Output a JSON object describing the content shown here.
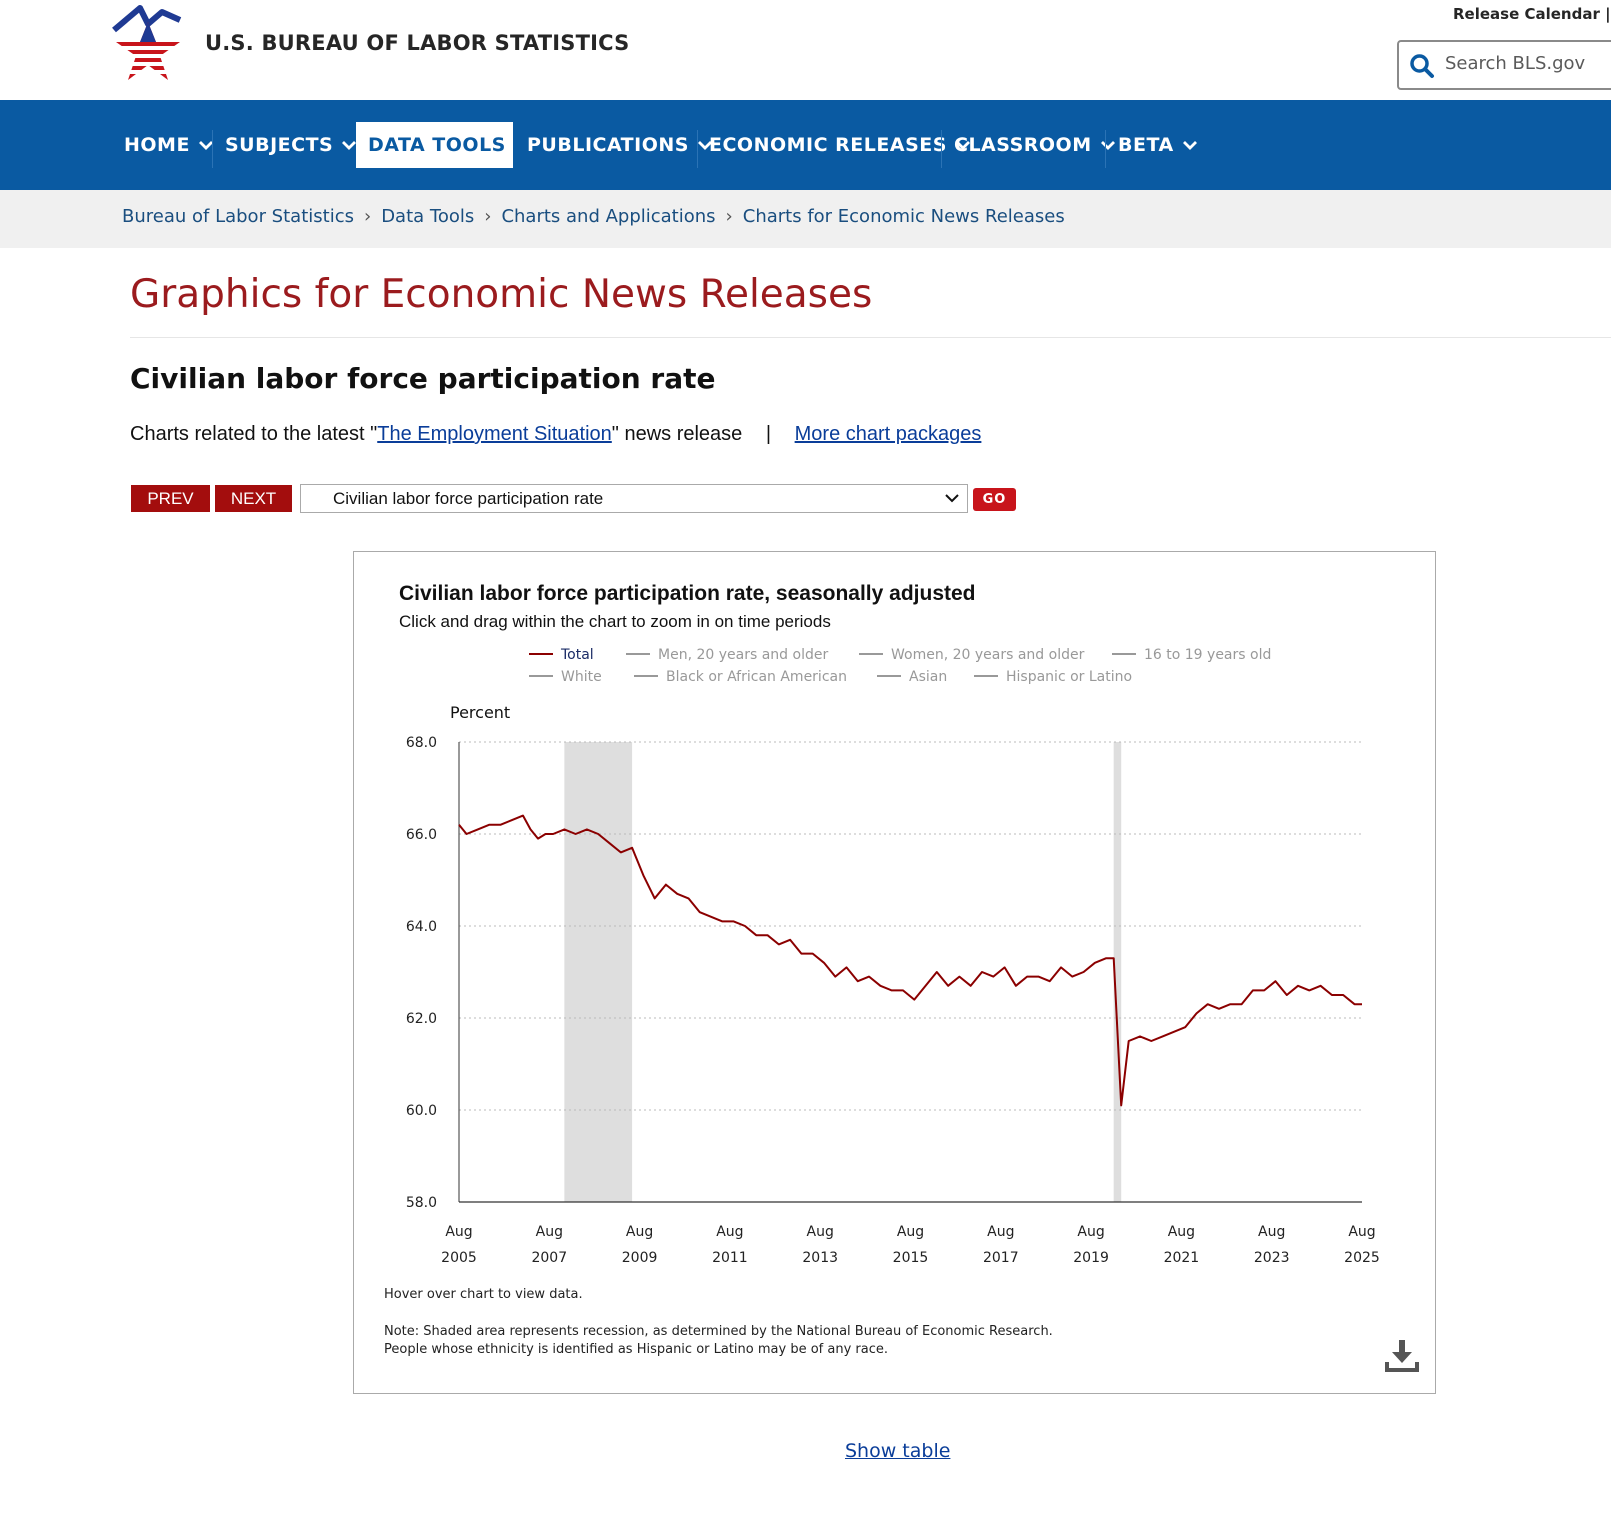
{
  "header": {
    "site_title": "U.S. BUREAU OF LABOR STATISTICS",
    "top_links": "Release Calendar | S",
    "search_placeholder": "Search BLS.gov",
    "colors": {
      "blue": "#0a5aa2",
      "red": "#c8141b"
    }
  },
  "nav": {
    "items": [
      {
        "label": "HOME"
      },
      {
        "label": "SUBJECTS"
      },
      {
        "label": "DATA TOOLS"
      },
      {
        "label": "PUBLICATIONS"
      },
      {
        "label": "ECONOMIC RELEASES"
      },
      {
        "label": "CLASSROOM"
      },
      {
        "label": "BETA"
      }
    ],
    "active": "DATA TOOLS"
  },
  "breadcrumb": [
    "Bureau of Labor Statistics",
    "Data Tools",
    "Charts and Applications",
    "Charts for Economic News Releases"
  ],
  "page": {
    "title": "Graphics for Economic News Releases",
    "heading": "Civilian labor force participation rate",
    "related_prefix": "Charts related to the latest \"",
    "related_link": "The Employment Situation",
    "related_suffix": "\" news release",
    "separator": "|",
    "more_link": "More chart packages"
  },
  "controls": {
    "prev": "PREV",
    "next": "NEXT",
    "selected": "Civilian labor force participation rate",
    "go": "GO"
  },
  "chart": {
    "title": "Civilian labor force participation rate, seasonally adjusted",
    "subtitle": "Click and drag within the chart to zoom in on time periods",
    "hover_note": "Hover over chart to view data.",
    "note_line1": "Note: Shaded area represents recession, as determined by the National Bureau of Economic Research.",
    "note_line2": "People whose ethnicity is identified as Hispanic or Latino may be of any race.",
    "show_table": "Show table"
  },
  "chart_data": {
    "type": "line",
    "title": "Civilian labor force participation rate, seasonally adjusted",
    "ylabel": "Percent",
    "ylim": [
      58.0,
      68.0
    ],
    "yticks": [
      "58.0",
      "60.0",
      "62.0",
      "64.0",
      "66.0",
      "68.0"
    ],
    "xticks": [
      {
        "month": "Aug",
        "year": "2005"
      },
      {
        "month": "Aug",
        "year": "2007"
      },
      {
        "month": "Aug",
        "year": "2009"
      },
      {
        "month": "Aug",
        "year": "2011"
      },
      {
        "month": "Aug",
        "year": "2013"
      },
      {
        "month": "Aug",
        "year": "2015"
      },
      {
        "month": "Aug",
        "year": "2017"
      },
      {
        "month": "Aug",
        "year": "2019"
      },
      {
        "month": "Aug",
        "year": "2021"
      },
      {
        "month": "Aug",
        "year": "2023"
      },
      {
        "month": "Aug",
        "year": "2025"
      }
    ],
    "legend": [
      {
        "name": "Total",
        "color": "#8b0000",
        "active": true
      },
      {
        "name": "Men, 20 years and older",
        "color": "#999999",
        "active": false
      },
      {
        "name": "Women, 20 years and older",
        "color": "#999999",
        "active": false
      },
      {
        "name": "16 to 19 years old",
        "color": "#999999",
        "active": false
      },
      {
        "name": "White",
        "color": "#999999",
        "active": false
      },
      {
        "name": "Black or African American",
        "color": "#999999",
        "active": false
      },
      {
        "name": "Asian",
        "color": "#999999",
        "active": false
      },
      {
        "name": "Hispanic or Latino",
        "color": "#999999",
        "active": false
      }
    ],
    "recessions": [
      {
        "start": "2007-12",
        "end": "2009-06"
      },
      {
        "start": "2020-02",
        "end": "2020-04"
      }
    ],
    "grid": true,
    "series": [
      {
        "name": "Total",
        "color": "#8b0000",
        "x": [
          "2005-08",
          "2005-10",
          "2006-01",
          "2006-04",
          "2006-07",
          "2006-10",
          "2007-01",
          "2007-03",
          "2007-05",
          "2007-07",
          "2007-09",
          "2007-12",
          "2008-03",
          "2008-06",
          "2008-09",
          "2008-12",
          "2009-03",
          "2009-06",
          "2009-09",
          "2009-12",
          "2010-03",
          "2010-06",
          "2010-09",
          "2010-12",
          "2011-03",
          "2011-06",
          "2011-09",
          "2011-12",
          "2012-03",
          "2012-06",
          "2012-09",
          "2012-12",
          "2013-03",
          "2013-06",
          "2013-09",
          "2013-12",
          "2014-03",
          "2014-06",
          "2014-09",
          "2014-12",
          "2015-03",
          "2015-06",
          "2015-09",
          "2015-12",
          "2016-03",
          "2016-06",
          "2016-09",
          "2016-12",
          "2017-03",
          "2017-06",
          "2017-09",
          "2017-12",
          "2018-03",
          "2018-06",
          "2018-09",
          "2018-12",
          "2019-03",
          "2019-06",
          "2019-09",
          "2019-12",
          "2020-02",
          "2020-04",
          "2020-06",
          "2020-09",
          "2020-12",
          "2021-03",
          "2021-06",
          "2021-09",
          "2021-12",
          "2022-03",
          "2022-06",
          "2022-09",
          "2022-12",
          "2023-03",
          "2023-06",
          "2023-09",
          "2023-12",
          "2024-03",
          "2024-06",
          "2024-09",
          "2024-12",
          "2025-03",
          "2025-06",
          "2025-08"
        ],
        "values": [
          66.2,
          66.0,
          66.1,
          66.2,
          66.2,
          66.3,
          66.4,
          66.1,
          65.9,
          66.0,
          66.0,
          66.1,
          66.0,
          66.1,
          66.0,
          65.8,
          65.6,
          65.7,
          65.1,
          64.6,
          64.9,
          64.7,
          64.6,
          64.3,
          64.2,
          64.1,
          64.1,
          64.0,
          63.8,
          63.8,
          63.6,
          63.7,
          63.4,
          63.4,
          63.2,
          62.9,
          63.1,
          62.8,
          62.9,
          62.7,
          62.6,
          62.6,
          62.4,
          62.7,
          63.0,
          62.7,
          62.9,
          62.7,
          63.0,
          62.9,
          63.1,
          62.7,
          62.9,
          62.9,
          62.8,
          63.1,
          62.9,
          63.0,
          63.2,
          63.3,
          63.3,
          60.1,
          61.5,
          61.6,
          61.5,
          61.6,
          61.7,
          61.8,
          62.1,
          62.3,
          62.2,
          62.3,
          62.3,
          62.6,
          62.6,
          62.8,
          62.5,
          62.7,
          62.6,
          62.7,
          62.5,
          62.5,
          62.3,
          62.3
        ]
      }
    ]
  }
}
